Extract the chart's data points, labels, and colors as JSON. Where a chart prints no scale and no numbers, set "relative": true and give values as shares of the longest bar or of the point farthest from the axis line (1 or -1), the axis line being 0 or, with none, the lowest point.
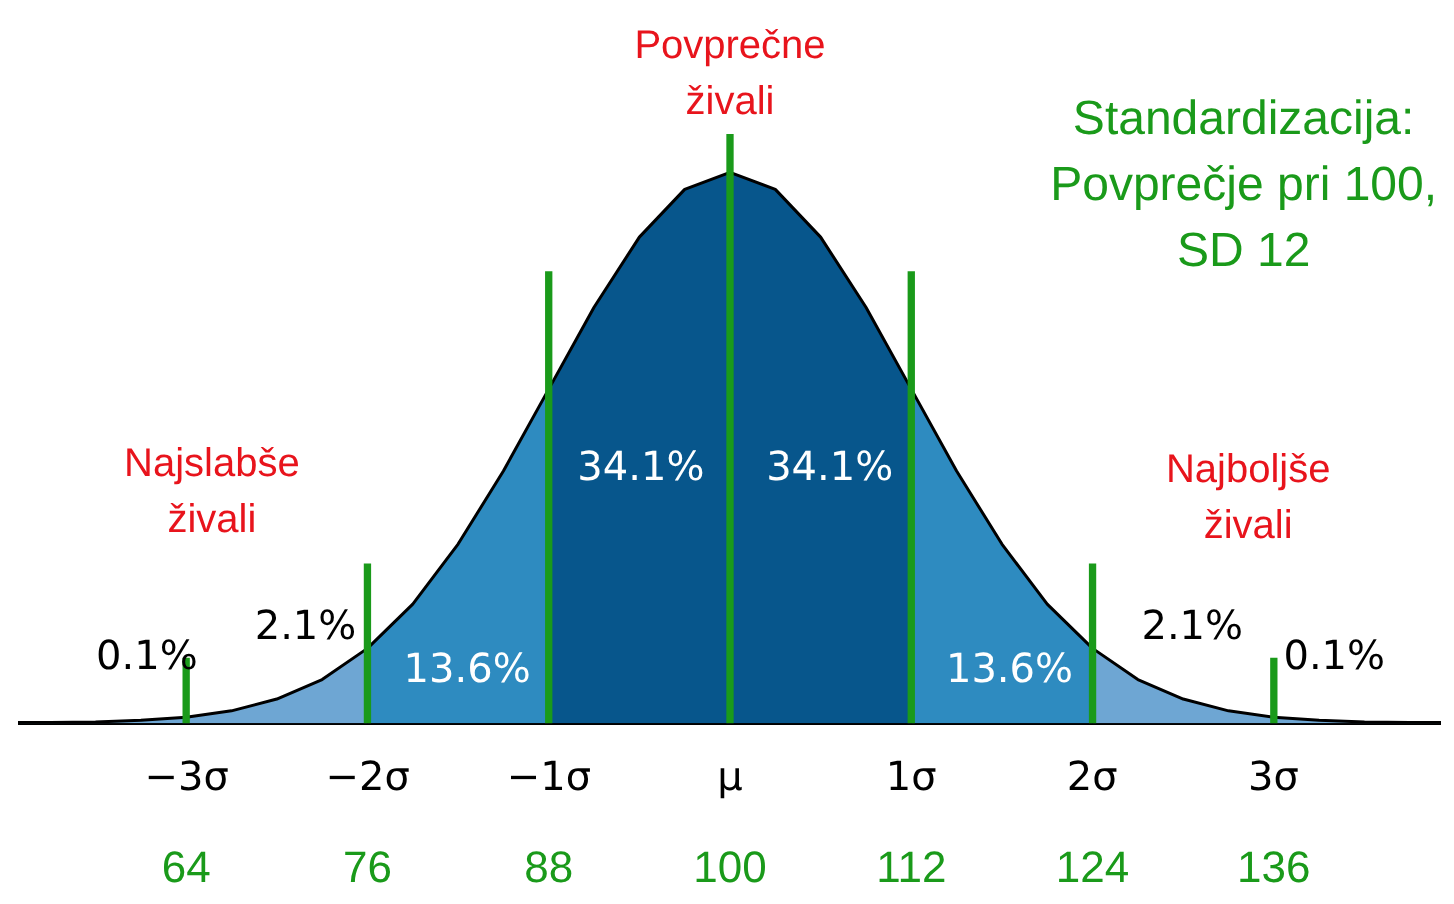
{
  "chart_data": {
    "type": "area",
    "relative": true,
    "tick_labels": "x",
    "legend": false,
    "grid": false,
    "annotations": [
      "Povprečne\nživali",
      "Standardizacija:\nPovprečje pri 100,\nSD 12",
      "Najslabše\nživali",
      "Najboljše\nživali",
      "34.1%",
      "34.1%",
      "13.6%",
      "13.6%",
      "2.1%",
      "2.1%",
      "0.1%",
      "0.1%"
    ],
    "xlim": [
      53,
      147
    ],
    "xticks": [
      64,
      76,
      88,
      100,
      112,
      124,
      136
    ],
    "x2lim": [
      -3.92,
      3.92
    ],
    "x2ticks": [
      {
        "value": -3,
        "label": "−3σ"
      },
      {
        "value": -2,
        "label": "−2σ"
      },
      {
        "value": -1,
        "label": "−1σ"
      },
      {
        "value": 0,
        "label": "μ"
      },
      {
        "value": 1,
        "label": "1σ"
      },
      {
        "value": 2,
        "label": "2σ"
      },
      {
        "value": 3,
        "label": "3σ"
      }
    ],
    "series": [
      {
        "color": "#6ea6d3",
        "x": [
          53,
          55,
          58,
          61,
          64,
          67,
          70,
          73,
          76
        ],
        "values": [
          0.0004,
          0.001,
          0.002,
          0.005,
          0.01,
          0.021,
          0.041,
          0.074,
          0.127
        ]
      },
      {
        "color": "#2e8bc0",
        "x": [
          76,
          79,
          82,
          85,
          88
        ],
        "values": [
          0.127,
          0.202,
          0.304,
          0.428,
          0.567
        ]
      },
      {
        "color": "#07568c",
        "x": [
          88,
          91,
          94,
          97,
          100,
          103,
          106,
          109,
          112
        ],
        "values": [
          0.567,
          0.706,
          0.825,
          0.906,
          0.935,
          0.906,
          0.825,
          0.706,
          0.567
        ]
      },
      {
        "color": "#2e8bc0",
        "x": [
          112,
          115,
          118,
          121,
          124
        ],
        "values": [
          0.567,
          0.428,
          0.304,
          0.202,
          0.127
        ]
      },
      {
        "color": "#6ea6d3",
        "x": [
          124,
          127,
          130,
          133,
          136,
          139,
          142,
          145,
          147
        ],
        "values": [
          0.127,
          0.074,
          0.041,
          0.021,
          0.01,
          0.005,
          0.002,
          0.001,
          0.0004
        ]
      },
      {
        "type": "bar",
        "color": "#1a9a1a",
        "x": [
          64,
          76,
          88,
          100,
          112,
          124,
          136
        ],
        "values": [
          0.11,
          0.27,
          0.766,
          1,
          0.766,
          0.27,
          0.11
        ]
      }
    ]
  }
}
